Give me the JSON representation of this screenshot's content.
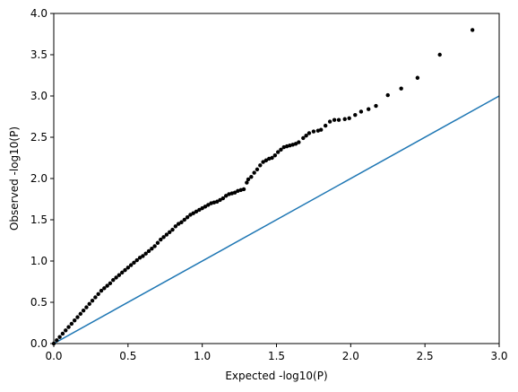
{
  "chart_data": {
    "type": "scatter",
    "title": "",
    "xlabel": "Expected -log10(P)",
    "ylabel": "Observed -log10(P)",
    "xlim": [
      0,
      3.0
    ],
    "ylim": [
      0,
      4.0
    ],
    "x_ticks": [
      "0.0",
      "0.5",
      "1.0",
      "1.5",
      "2.0",
      "2.5",
      "3.0"
    ],
    "y_ticks": [
      "0.0",
      "0.5",
      "1.0",
      "1.5",
      "2.0",
      "2.5",
      "3.0",
      "3.5",
      "4.0"
    ],
    "grid": false,
    "colors": {
      "points": "#000000",
      "reference_line": "#1f77b4"
    },
    "series": [
      {
        "kind": "reference-line",
        "x": [
          0,
          3.0
        ],
        "y": [
          0,
          3.0
        ]
      },
      {
        "kind": "points",
        "x": [
          0.0,
          0.02,
          0.04,
          0.06,
          0.08,
          0.1,
          0.12,
          0.14,
          0.16,
          0.18,
          0.2,
          0.22,
          0.24,
          0.26,
          0.28,
          0.3,
          0.32,
          0.34,
          0.36,
          0.38,
          0.4,
          0.42,
          0.44,
          0.46,
          0.48,
          0.5,
          0.52,
          0.54,
          0.56,
          0.58,
          0.6,
          0.62,
          0.64,
          0.66,
          0.68,
          0.7,
          0.72,
          0.74,
          0.76,
          0.78,
          0.8,
          0.82,
          0.84,
          0.86,
          0.88,
          0.9,
          0.92,
          0.94,
          0.96,
          0.98,
          1.0,
          1.02,
          1.04,
          1.06,
          1.08,
          1.1,
          1.12,
          1.14,
          1.16,
          1.18,
          1.2,
          1.22,
          1.24,
          1.26,
          1.28,
          1.3,
          1.31,
          1.33,
          1.35,
          1.37,
          1.39,
          1.41,
          1.43,
          1.45,
          1.47,
          1.49,
          1.51,
          1.53,
          1.55,
          1.57,
          1.59,
          1.61,
          1.63,
          1.65,
          1.68,
          1.7,
          1.72,
          1.75,
          1.78,
          1.8,
          1.83,
          1.86,
          1.89,
          1.92,
          1.96,
          1.99,
          2.03,
          2.07,
          2.12,
          2.17,
          2.25,
          2.34,
          2.45,
          2.6,
          2.82
        ],
        "y": [
          0.0,
          0.04,
          0.08,
          0.12,
          0.16,
          0.2,
          0.24,
          0.28,
          0.32,
          0.36,
          0.4,
          0.44,
          0.48,
          0.52,
          0.56,
          0.6,
          0.64,
          0.67,
          0.7,
          0.73,
          0.77,
          0.8,
          0.83,
          0.86,
          0.89,
          0.92,
          0.95,
          0.98,
          1.01,
          1.04,
          1.06,
          1.09,
          1.12,
          1.15,
          1.18,
          1.22,
          1.26,
          1.29,
          1.32,
          1.35,
          1.38,
          1.42,
          1.45,
          1.47,
          1.5,
          1.53,
          1.56,
          1.58,
          1.6,
          1.62,
          1.64,
          1.66,
          1.68,
          1.7,
          1.71,
          1.72,
          1.74,
          1.76,
          1.79,
          1.81,
          1.82,
          1.83,
          1.85,
          1.86,
          1.87,
          1.95,
          1.99,
          2.02,
          2.07,
          2.11,
          2.16,
          2.2,
          2.22,
          2.24,
          2.25,
          2.28,
          2.32,
          2.35,
          2.38,
          2.39,
          2.4,
          2.41,
          2.42,
          2.44,
          2.49,
          2.52,
          2.55,
          2.57,
          2.58,
          2.59,
          2.64,
          2.69,
          2.71,
          2.71,
          2.72,
          2.73,
          2.77,
          2.81,
          2.84,
          2.88,
          3.01,
          3.09,
          3.22,
          3.5,
          3.8
        ]
      }
    ]
  }
}
